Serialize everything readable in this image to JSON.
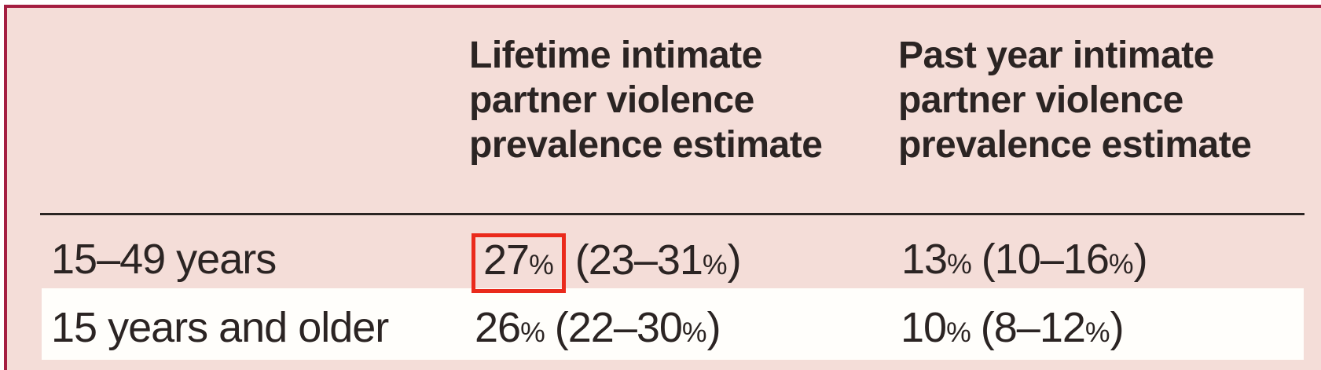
{
  "colors": {
    "frame-border": "#a41e41",
    "panel-bg": "#f4ddd8",
    "row-alt-bg": "#fffefb",
    "text": "#2b2423",
    "highlight-box": "#ea2a1c"
  },
  "table": {
    "column_headers": {
      "lifetime": "Lifetime intimate partner violence prevalence estimate",
      "past_year": "Past year intimate partner violence prevalence estimate"
    },
    "rows": [
      {
        "label": "15–49 years",
        "lifetime_value": "27%",
        "lifetime_ci": "(23–31%)",
        "past_year_value": "13%",
        "past_year_ci": "(10–16%)",
        "lifetime_value_highlighted": true
      },
      {
        "label": "15 years and older",
        "lifetime_value": "26%",
        "lifetime_ci": "(22–30%)",
        "past_year_value": "10%",
        "past_year_ci": "(8–12%)",
        "lifetime_value_highlighted": false
      }
    ]
  },
  "chart_data": {
    "type": "table",
    "columns": [
      "",
      "Lifetime intimate partner violence prevalence estimate",
      "Past year intimate partner violence prevalence estimate"
    ],
    "rows": [
      [
        "15–49 years",
        "27% (23–31%)",
        "13% (10–16%)"
      ],
      [
        "15 years and older",
        "26% (22–30%)",
        "10% (8–12%)"
      ]
    ],
    "highlighted_cell": {
      "row": "15–49 years",
      "column": "Lifetime intimate partner violence prevalence estimate",
      "value": "27%"
    }
  }
}
